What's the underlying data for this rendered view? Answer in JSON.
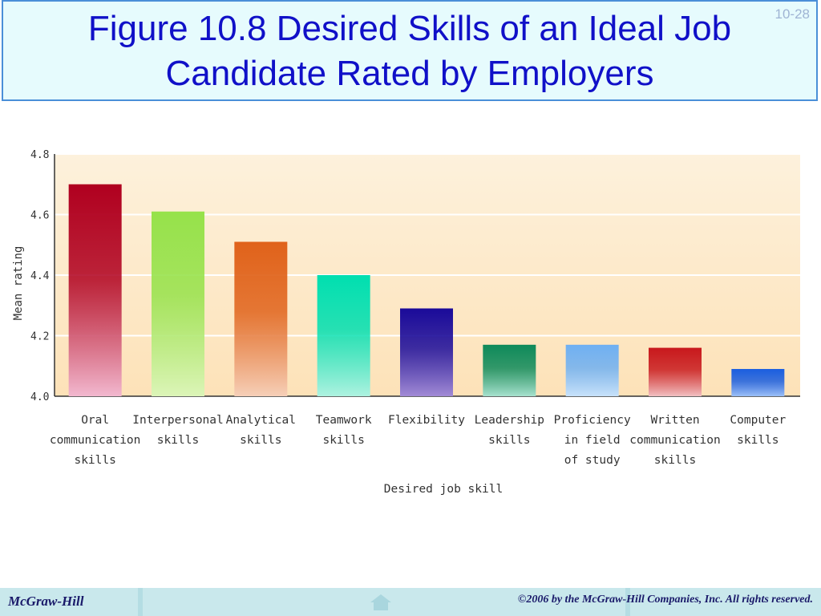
{
  "slide": {
    "title": "Figure 10.8  Desired Skills of an Ideal Job\nCandidate Rated by Employers",
    "number": "10-28"
  },
  "footer": {
    "publisher": "McGraw-Hill",
    "copyright": "©2006 by the McGraw-Hill Companies, Inc. All rights reserved.",
    "icon": "home-icon"
  },
  "chart_data": {
    "type": "bar",
    "categories": [
      "Oral communication skills",
      "Interpersonal skills",
      "Analytical skills",
      "Teamwork skills",
      "Flexibility",
      "Leadership skills",
      "Proficiency in field of study",
      "Written communication skills",
      "Computer skills"
    ],
    "category_lines": [
      [
        "Oral",
        "communication",
        "skills"
      ],
      [
        "Interpersonal",
        "skills"
      ],
      [
        "Analytical",
        "skills"
      ],
      [
        "Teamwork",
        "skills"
      ],
      [
        "Flexibility"
      ],
      [
        "Leadership",
        "skills"
      ],
      [
        "Proficiency",
        "in field",
        "of study"
      ],
      [
        "Written",
        "communication",
        "skills"
      ],
      [
        "Computer",
        "skills"
      ]
    ],
    "values": [
      4.7,
      4.61,
      4.51,
      4.4,
      4.29,
      4.17,
      4.17,
      4.16,
      4.09
    ],
    "bar_colors": [
      [
        "#b0001f",
        "#f2b8cf"
      ],
      [
        "#96e24a",
        "#dcf5b8"
      ],
      [
        "#e0621a",
        "#f6cfb8"
      ],
      [
        "#00dfb0",
        "#aef2e0"
      ],
      [
        "#1a0a9a",
        "#a28bd6"
      ],
      [
        "#0e8a5a",
        "#a8e2cf"
      ],
      [
        "#6fb0f2",
        "#c8e2fa"
      ],
      [
        "#c8181c",
        "#f2c0c2"
      ],
      [
        "#1a5ee0",
        "#9cc0f8"
      ]
    ],
    "xlabel": "Desired job skill",
    "ylabel": "Mean rating",
    "ylim": [
      4.0,
      4.8
    ],
    "yticks": [
      "4.0",
      "4.2",
      "4.4",
      "4.6",
      "4.8"
    ],
    "grid": true
  }
}
